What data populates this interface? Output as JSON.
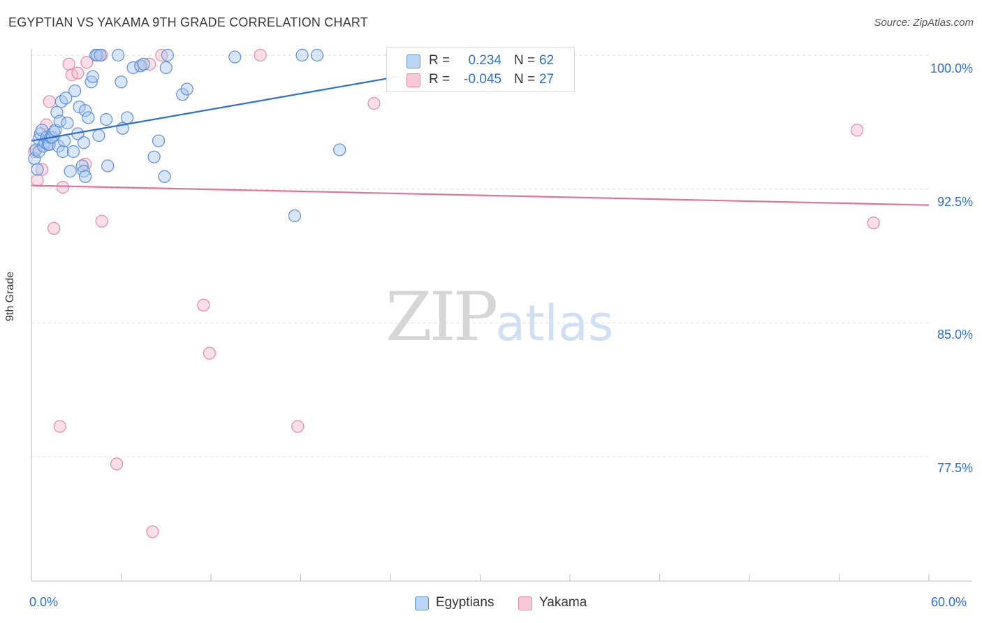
{
  "header": {
    "title": "EGYPTIAN VS YAKAMA 9TH GRADE CORRELATION CHART",
    "source": "Source: ZipAtlas.com"
  },
  "watermark": {
    "zip": "ZIP",
    "atlas": "atlas"
  },
  "legend": {
    "series": [
      {
        "r_label": "R =",
        "r_value": "0.234",
        "n_label": "N =",
        "n_value": "62",
        "color": "#a8c8f0"
      },
      {
        "r_label": "R =",
        "r_value": "-0.045",
        "n_label": "N =",
        "n_value": "27",
        "color": "#f7b8c9"
      }
    ]
  },
  "bottom_legend": {
    "egyptians": "Egyptians",
    "yakama": "Yakama"
  },
  "axes": {
    "ylabel": "9th Grade",
    "x_min_label": "0.0%",
    "x_max_label": "60.0%",
    "y_ticks": [
      "100.0%",
      "92.5%",
      "85.0%",
      "77.5%"
    ]
  },
  "colors": {
    "blue_fill": "#a8c8f0",
    "blue_stroke": "#5b8fd6",
    "blue_line": "#2d6fd1",
    "pink_fill": "#f7b8c9",
    "pink_stroke": "#e68aa6",
    "pink_line": "#e0739a",
    "grid": "#dddddd",
    "axis": "#bbbbbb"
  },
  "chart_data": {
    "type": "scatter",
    "title": "EGYPTIAN VS YAKAMA 9TH GRADE CORRELATION CHART",
    "xlabel": "",
    "ylabel": "9th Grade",
    "xlim": [
      0,
      60
    ],
    "ylim": [
      70.5,
      100.5
    ],
    "y_ticks": [
      77.5,
      85.0,
      92.5,
      100.0
    ],
    "grid": true,
    "series": [
      {
        "name": "Egyptians",
        "R": 0.234,
        "N": 62,
        "trend": {
          "x": [
            0,
            24.5
          ],
          "y": [
            95.2,
            98.8
          ]
        },
        "points": [
          [
            0.2,
            94.2
          ],
          [
            0.3,
            94.7
          ],
          [
            0.4,
            93.6
          ],
          [
            0.5,
            94.6
          ],
          [
            0.5,
            95.3
          ],
          [
            0.6,
            95.6
          ],
          [
            0.7,
            95.8
          ],
          [
            0.8,
            94.9
          ],
          [
            0.9,
            95.1
          ],
          [
            1.0,
            95.4
          ],
          [
            1.1,
            95.0
          ],
          [
            1.2,
            95.0
          ],
          [
            1.3,
            95.4
          ],
          [
            1.4,
            95.4
          ],
          [
            1.5,
            95.7
          ],
          [
            1.6,
            95.8
          ],
          [
            1.7,
            96.8
          ],
          [
            1.8,
            94.9
          ],
          [
            1.9,
            96.3
          ],
          [
            2.0,
            97.4
          ],
          [
            2.1,
            94.6
          ],
          [
            2.2,
            95.2
          ],
          [
            2.3,
            97.6
          ],
          [
            2.4,
            96.2
          ],
          [
            2.6,
            93.5
          ],
          [
            2.8,
            94.6
          ],
          [
            2.9,
            98.0
          ],
          [
            3.1,
            95.6
          ],
          [
            3.2,
            97.1
          ],
          [
            3.4,
            93.8
          ],
          [
            3.5,
            95.1
          ],
          [
            3.5,
            93.5
          ],
          [
            3.6,
            93.2
          ],
          [
            3.6,
            96.9
          ],
          [
            3.8,
            96.5
          ],
          [
            4.0,
            98.5
          ],
          [
            4.1,
            98.8
          ],
          [
            4.3,
            100.0
          ],
          [
            4.4,
            100.0
          ],
          [
            4.5,
            95.5
          ],
          [
            4.6,
            100.0
          ],
          [
            5.0,
            96.4
          ],
          [
            5.1,
            93.8
          ],
          [
            5.8,
            100.0
          ],
          [
            6.0,
            98.5
          ],
          [
            6.1,
            95.9
          ],
          [
            6.4,
            96.5
          ],
          [
            6.8,
            99.3
          ],
          [
            7.3,
            99.4
          ],
          [
            7.5,
            99.5
          ],
          [
            8.2,
            94.3
          ],
          [
            8.5,
            95.2
          ],
          [
            8.9,
            93.2
          ],
          [
            9.0,
            99.3
          ],
          [
            9.1,
            100.0
          ],
          [
            10.1,
            97.8
          ],
          [
            10.4,
            98.1
          ],
          [
            13.6,
            99.9
          ],
          [
            17.6,
            91.0
          ],
          [
            18.1,
            100.0
          ],
          [
            19.1,
            100.0
          ],
          [
            20.6,
            94.7
          ]
        ]
      },
      {
        "name": "Yakama",
        "R": -0.045,
        "N": 27,
        "trend": {
          "x": [
            0,
            60
          ],
          "y": [
            92.7,
            91.6
          ]
        },
        "points": [
          [
            0.2,
            94.6
          ],
          [
            0.4,
            93.0
          ],
          [
            0.7,
            93.6
          ],
          [
            1.0,
            96.1
          ],
          [
            1.2,
            97.4
          ],
          [
            1.5,
            90.3
          ],
          [
            1.9,
            79.2
          ],
          [
            2.1,
            92.6
          ],
          [
            2.5,
            99.5
          ],
          [
            2.7,
            98.9
          ],
          [
            3.1,
            99.0
          ],
          [
            3.6,
            93.9
          ],
          [
            3.7,
            99.6
          ],
          [
            4.7,
            100.0
          ],
          [
            4.7,
            90.7
          ],
          [
            5.7,
            77.1
          ],
          [
            7.3,
            99.4
          ],
          [
            7.9,
            99.5
          ],
          [
            8.1,
            73.3
          ],
          [
            8.7,
            100.0
          ],
          [
            11.5,
            86.0
          ],
          [
            11.9,
            83.3
          ],
          [
            15.3,
            100.0
          ],
          [
            17.8,
            79.2
          ],
          [
            22.9,
            97.3
          ],
          [
            55.2,
            95.8
          ],
          [
            56.3,
            90.6
          ]
        ]
      }
    ]
  }
}
